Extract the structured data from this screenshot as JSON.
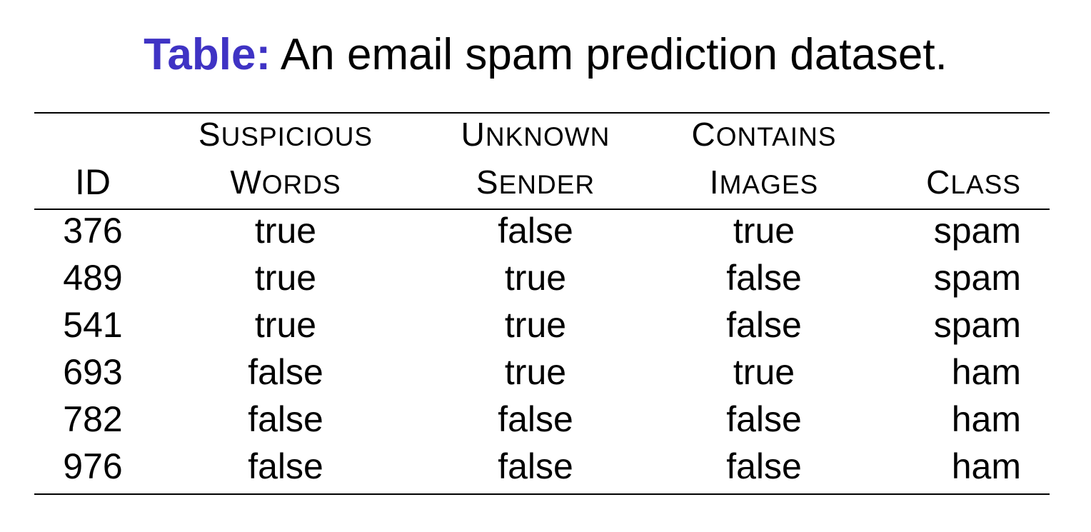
{
  "caption": {
    "label": "Table:",
    "text": "An email spam prediction dataset."
  },
  "table": {
    "headers": {
      "id": "ID",
      "suspicious_words": [
        "Suspicious",
        "Words"
      ],
      "unknown_sender": [
        "Unknown",
        "Sender"
      ],
      "contains_images": [
        "Contains",
        "Images"
      ],
      "class": "Class"
    },
    "rows": [
      [
        "376",
        "true",
        "false",
        "true",
        "spam"
      ],
      [
        "489",
        "true",
        "true",
        "false",
        "spam"
      ],
      [
        "541",
        "true",
        "true",
        "false",
        "spam"
      ],
      [
        "693",
        "false",
        "true",
        "true",
        "ham"
      ],
      [
        "782",
        "false",
        "false",
        "false",
        "ham"
      ],
      [
        "976",
        "false",
        "false",
        "false",
        "ham"
      ]
    ]
  },
  "colors": {
    "caption_label": "#3f33c4",
    "text": "#000000",
    "rule": "#000000"
  }
}
